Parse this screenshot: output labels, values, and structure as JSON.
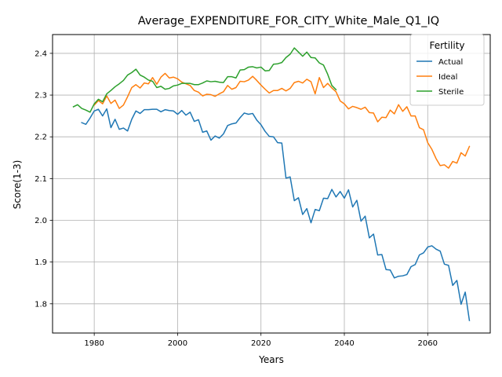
{
  "chart_data": {
    "type": "line",
    "title": "Average_EXPENDITURE_FOR_CITY_White_Male_Q1_IQ",
    "xlabel": "Years",
    "ylabel": "Score(1-3)",
    "xlim": [
      1970,
      2075
    ],
    "ylim": [
      1.73,
      2.445
    ],
    "x_ticks": [
      1980,
      2000,
      2020,
      2040,
      2060
    ],
    "y_ticks": [
      1.8,
      1.9,
      2.0,
      2.1,
      2.2,
      2.3,
      2.4
    ],
    "grid": true,
    "legend": {
      "title": "Fertility",
      "placement": "top-right"
    },
    "series": [
      {
        "name": "Actual",
        "color": "#1f77b4",
        "x": [
          1977,
          1978,
          1979,
          1980,
          1981,
          1982,
          1983,
          1984,
          1985,
          1986,
          1987,
          1988,
          1989,
          1990,
          1991,
          1992,
          1993,
          1994,
          1995,
          1996,
          1997,
          1998,
          1999,
          2000,
          2001,
          2002,
          2003,
          2004,
          2005,
          2006,
          2007,
          2008,
          2009,
          2010,
          2011,
          2012,
          2013,
          2014,
          2015,
          2016,
          2017,
          2018,
          2019,
          2020,
          2021,
          2022,
          2023,
          2024,
          2025,
          2026,
          2027,
          2028,
          2029,
          2030,
          2031,
          2032,
          2033,
          2034,
          2035,
          2036,
          2037,
          2038,
          2039,
          2040,
          2041,
          2042,
          2043,
          2044,
          2045,
          2046,
          2047,
          2048,
          2049,
          2050,
          2051,
          2052,
          2053,
          2054,
          2055,
          2056,
          2057,
          2058,
          2059,
          2060,
          2061,
          2062,
          2063,
          2064,
          2065,
          2066,
          2067,
          2068,
          2069,
          2070
        ],
        "values": [
          2.234,
          2.23,
          2.245,
          2.262,
          2.266,
          2.25,
          2.267,
          2.222,
          2.242,
          2.218,
          2.221,
          2.214,
          2.242,
          2.262,
          2.256,
          2.265,
          2.265,
          2.266,
          2.266,
          2.26,
          2.265,
          2.263,
          2.262,
          2.254,
          2.263,
          2.252,
          2.259,
          2.237,
          2.241,
          2.211,
          2.214,
          2.192,
          2.202,
          2.197,
          2.207,
          2.227,
          2.231,
          2.233,
          2.246,
          2.257,
          2.254,
          2.256,
          2.24,
          2.229,
          2.213,
          2.201,
          2.2,
          2.186,
          2.185,
          2.101,
          2.104,
          2.047,
          2.054,
          2.014,
          2.028,
          1.994,
          2.026,
          2.023,
          2.053,
          2.052,
          2.074,
          2.056,
          2.069,
          2.053,
          2.073,
          2.032,
          2.048,
          1.998,
          2.01,
          1.958,
          1.967,
          1.917,
          1.918,
          1.882,
          1.881,
          1.862,
          1.866,
          1.867,
          1.87,
          1.889,
          1.894,
          1.917,
          1.922,
          1.936,
          1.939,
          1.931,
          1.926,
          1.895,
          1.892,
          1.844,
          1.856,
          1.799,
          1.828,
          1.76
        ]
      },
      {
        "name": "Ideal",
        "color": "#ff7f0e",
        "x": [
          1980,
          1981,
          1982,
          1983,
          1984,
          1985,
          1986,
          1987,
          1988,
          1989,
          1990,
          1991,
          1992,
          1993,
          1994,
          1995,
          1996,
          1997,
          1998,
          1999,
          2000,
          2001,
          2002,
          2003,
          2004,
          2005,
          2006,
          2007,
          2008,
          2009,
          2010,
          2011,
          2012,
          2013,
          2014,
          2015,
          2016,
          2017,
          2018,
          2019,
          2020,
          2021,
          2022,
          2023,
          2024,
          2025,
          2026,
          2027,
          2028,
          2029,
          2030,
          2031,
          2032,
          2033,
          2034,
          2035,
          2036,
          2037,
          2038,
          2039,
          2040,
          2041,
          2042,
          2043,
          2044,
          2045,
          2046,
          2047,
          2048,
          2049,
          2050,
          2051,
          2052,
          2053,
          2054,
          2055,
          2056,
          2057,
          2058,
          2059,
          2060,
          2061,
          2062,
          2063,
          2064,
          2065,
          2066,
          2067,
          2068,
          2069,
          2070
        ],
        "values": [
          2.276,
          2.287,
          2.279,
          2.298,
          2.28,
          2.288,
          2.268,
          2.276,
          2.296,
          2.318,
          2.325,
          2.317,
          2.329,
          2.327,
          2.342,
          2.326,
          2.343,
          2.352,
          2.341,
          2.343,
          2.339,
          2.331,
          2.327,
          2.323,
          2.311,
          2.307,
          2.298,
          2.302,
          2.301,
          2.297,
          2.303,
          2.308,
          2.323,
          2.314,
          2.318,
          2.333,
          2.332,
          2.336,
          2.345,
          2.335,
          2.324,
          2.314,
          2.305,
          2.311,
          2.311,
          2.316,
          2.31,
          2.316,
          2.33,
          2.333,
          2.329,
          2.338,
          2.332,
          2.303,
          2.342,
          2.318,
          2.328,
          2.317,
          2.308,
          2.286,
          2.279,
          2.267,
          2.273,
          2.27,
          2.266,
          2.271,
          2.258,
          2.257,
          2.236,
          2.247,
          2.246,
          2.264,
          2.255,
          2.277,
          2.261,
          2.272,
          2.25,
          2.25,
          2.222,
          2.217,
          2.186,
          2.17,
          2.148,
          2.131,
          2.133,
          2.125,
          2.141,
          2.137,
          2.162,
          2.154,
          2.177
        ]
      },
      {
        "name": "Sterile",
        "color": "#2ca02c",
        "x": [
          1975,
          1976,
          1977,
          1978,
          1979,
          1980,
          1981,
          1982,
          1983,
          1984,
          1985,
          1986,
          1987,
          1988,
          1989,
          1990,
          1991,
          1992,
          1993,
          1994,
          1995,
          1996,
          1997,
          1998,
          1999,
          2000,
          2001,
          2002,
          2003,
          2004,
          2005,
          2006,
          2007,
          2008,
          2009,
          2010,
          2011,
          2012,
          2013,
          2014,
          2015,
          2016,
          2017,
          2018,
          2019,
          2020,
          2021,
          2022,
          2023,
          2024,
          2025,
          2026,
          2027,
          2028,
          2029,
          2030,
          2031,
          2032,
          2033,
          2034,
          2035,
          2036,
          2037,
          2038
        ],
        "values": [
          2.272,
          2.277,
          2.268,
          2.264,
          2.259,
          2.279,
          2.29,
          2.284,
          2.303,
          2.311,
          2.32,
          2.327,
          2.335,
          2.348,
          2.354,
          2.362,
          2.348,
          2.343,
          2.336,
          2.333,
          2.318,
          2.321,
          2.314,
          2.316,
          2.322,
          2.324,
          2.328,
          2.328,
          2.328,
          2.325,
          2.325,
          2.329,
          2.334,
          2.332,
          2.333,
          2.331,
          2.33,
          2.344,
          2.344,
          2.341,
          2.36,
          2.361,
          2.367,
          2.368,
          2.365,
          2.367,
          2.358,
          2.359,
          2.374,
          2.375,
          2.378,
          2.39,
          2.398,
          2.413,
          2.403,
          2.393,
          2.403,
          2.39,
          2.389,
          2.377,
          2.372,
          2.35,
          2.323,
          2.313
        ]
      }
    ]
  }
}
